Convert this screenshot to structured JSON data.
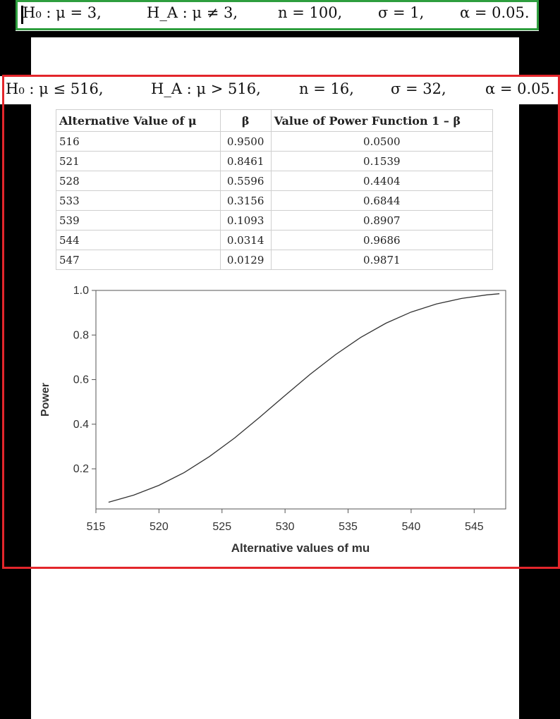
{
  "top_equation": {
    "h0": "H₀ : μ = 3,",
    "ha": "H_A : μ ≠ 3,",
    "n": "n = 100,",
    "sigma": "σ = 1,",
    "alpha": "α = 0.05."
  },
  "main_equation": {
    "h0": "H₀ : μ ≤ 516,",
    "ha": "H_A : μ > 516,",
    "n": "n = 16,",
    "sigma": "σ = 32,",
    "alpha": "α = 0.05."
  },
  "table": {
    "headers": [
      "Alternative Value of μ",
      "β",
      "Value of Power Function 1 – β"
    ],
    "rows": [
      [
        "516",
        "0.9500",
        "0.0500"
      ],
      [
        "521",
        "0.8461",
        "0.1539"
      ],
      [
        "528",
        "0.5596",
        "0.4404"
      ],
      [
        "533",
        "0.3156",
        "0.6844"
      ],
      [
        "539",
        "0.1093",
        "0.8907"
      ],
      [
        "544",
        "0.0314",
        "0.9686"
      ],
      [
        "547",
        "0.0129",
        "0.9871"
      ]
    ]
  },
  "colors": {
    "top_box": "#2e9e3e",
    "main_box": "#e3262b",
    "curve": "#333333"
  },
  "chart_data": {
    "type": "line",
    "xlabel": "Alternative values of mu",
    "ylabel": "Power",
    "xlim": [
      515,
      547.5
    ],
    "ylim": [
      0.0,
      1.0
    ],
    "xticks": [
      "515",
      "520",
      "525",
      "530",
      "535",
      "540",
      "545"
    ],
    "yticks": [
      "0.2",
      "0.4",
      "0.6",
      "0.8",
      "1.0"
    ],
    "grid": false,
    "series": [
      {
        "x": [
          516,
          518,
          520,
          522,
          524,
          526,
          528,
          530,
          532,
          534,
          536,
          538,
          540,
          542,
          544,
          546,
          547
        ],
        "values": [
          0.05,
          0.082,
          0.126,
          0.183,
          0.255,
          0.338,
          0.432,
          0.529,
          0.624,
          0.712,
          0.789,
          0.853,
          0.903,
          0.939,
          0.964,
          0.98,
          0.985
        ]
      }
    ]
  }
}
